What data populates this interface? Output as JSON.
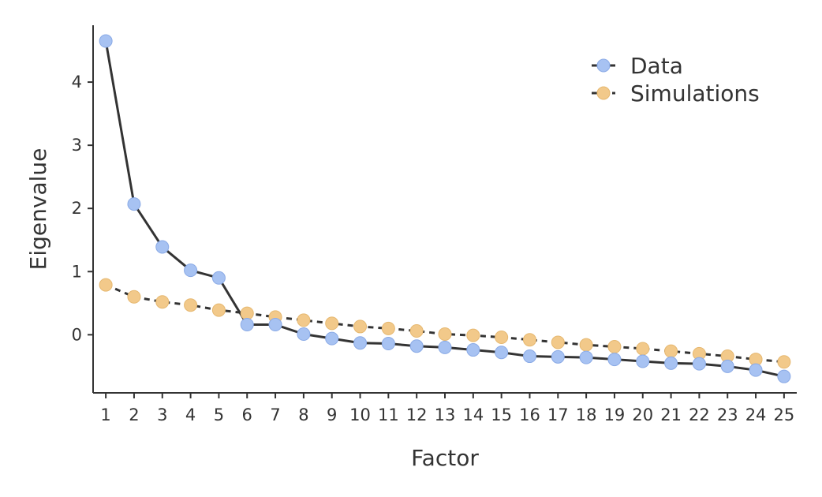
{
  "chart_data": {
    "type": "line",
    "xlabel": "Factor",
    "ylabel": "Eigenvalue",
    "x": [
      1,
      2,
      3,
      4,
      5,
      6,
      7,
      8,
      9,
      10,
      11,
      12,
      13,
      14,
      15,
      16,
      17,
      18,
      19,
      20,
      21,
      22,
      23,
      24,
      25
    ],
    "x_tick_labels": [
      "1",
      "2",
      "3",
      "4",
      "5",
      "6",
      "7",
      "8",
      "9",
      "10",
      "11",
      "12",
      "13",
      "14",
      "15",
      "16",
      "17",
      "18",
      "19",
      "20",
      "21",
      "22",
      "23",
      "24",
      "25"
    ],
    "y_ticks": [
      0,
      1,
      2,
      3,
      4
    ],
    "y_tick_labels": [
      "0",
      "1",
      "2",
      "3",
      "4"
    ],
    "ylim": [
      -0.92,
      4.9
    ],
    "xlim": [
      0.55,
      25.45
    ],
    "grid": false,
    "legend_position": "top-right",
    "series": [
      {
        "name": "Data",
        "line_style": "solid",
        "marker_color": "#a7c2f2",
        "marker_edge": "#8aaae6",
        "line_color": "#333333",
        "values": [
          4.65,
          2.07,
          1.39,
          1.02,
          0.9,
          0.16,
          0.16,
          0.01,
          -0.06,
          -0.13,
          -0.14,
          -0.18,
          -0.2,
          -0.24,
          -0.28,
          -0.34,
          -0.35,
          -0.36,
          -0.39,
          -0.42,
          -0.45,
          -0.46,
          -0.5,
          -0.56,
          -0.66
        ]
      },
      {
        "name": "Simulations",
        "line_style": "dashed",
        "marker_color": "#f2c98a",
        "marker_edge": "#e6b870",
        "line_color": "#333333",
        "values": [
          0.79,
          0.6,
          0.52,
          0.47,
          0.39,
          0.34,
          0.28,
          0.23,
          0.18,
          0.13,
          0.1,
          0.06,
          0.01,
          -0.01,
          -0.04,
          -0.08,
          -0.12,
          -0.16,
          -0.19,
          -0.22,
          -0.26,
          -0.3,
          -0.34,
          -0.39,
          -0.43
        ]
      }
    ]
  }
}
